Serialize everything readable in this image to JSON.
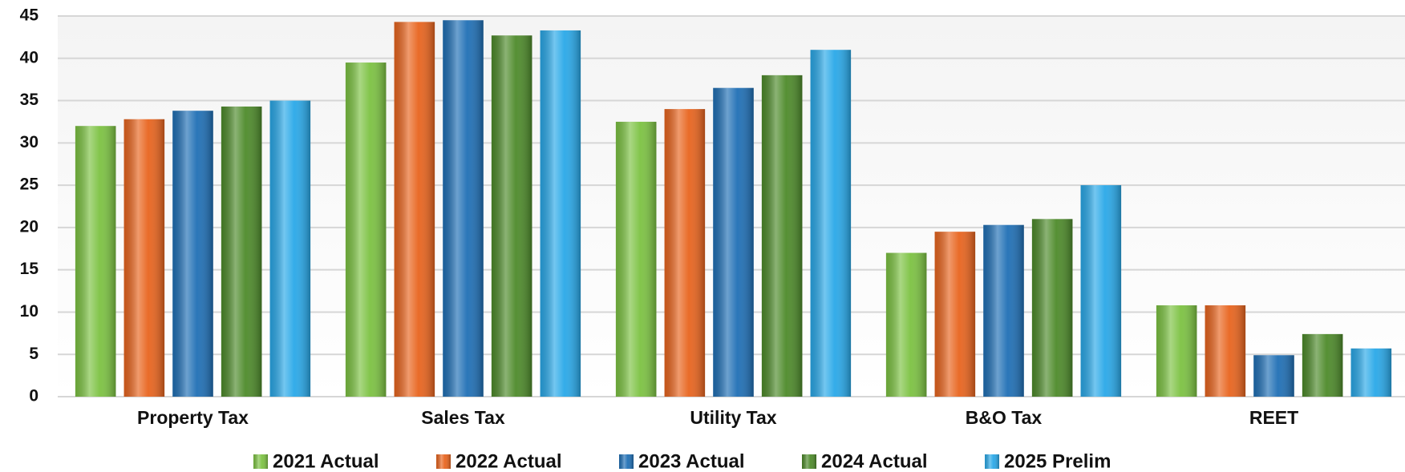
{
  "chart_data": {
    "type": "bar",
    "categories": [
      "Property Tax",
      "Sales Tax",
      "Utility Tax",
      "B&O Tax",
      "REET"
    ],
    "series": [
      {
        "name": "2021 Actual",
        "color": "#7cc242",
        "values": [
          32,
          39.5,
          32.5,
          17,
          10.8
        ]
      },
      {
        "name": "2022 Actual",
        "color": "#e8641e",
        "values": [
          32.8,
          44.3,
          34,
          19.5,
          10.8
        ]
      },
      {
        "name": "2023 Actual",
        "color": "#1f6fb5",
        "values": [
          33.8,
          44.5,
          36.5,
          20.3,
          4.9
        ]
      },
      {
        "name": "2024 Actual",
        "color": "#4d8a2a",
        "values": [
          34.3,
          42.7,
          38,
          21,
          7.4
        ]
      },
      {
        "name": "2025 Prelim",
        "color": "#29a8e8",
        "values": [
          35,
          43.3,
          41,
          25,
          5.7
        ]
      }
    ],
    "ylim": [
      0,
      45
    ],
    "yticks": [
      0,
      5,
      10,
      15,
      20,
      25,
      30,
      35,
      40,
      45
    ],
    "grid": true,
    "legend": "bottom"
  }
}
